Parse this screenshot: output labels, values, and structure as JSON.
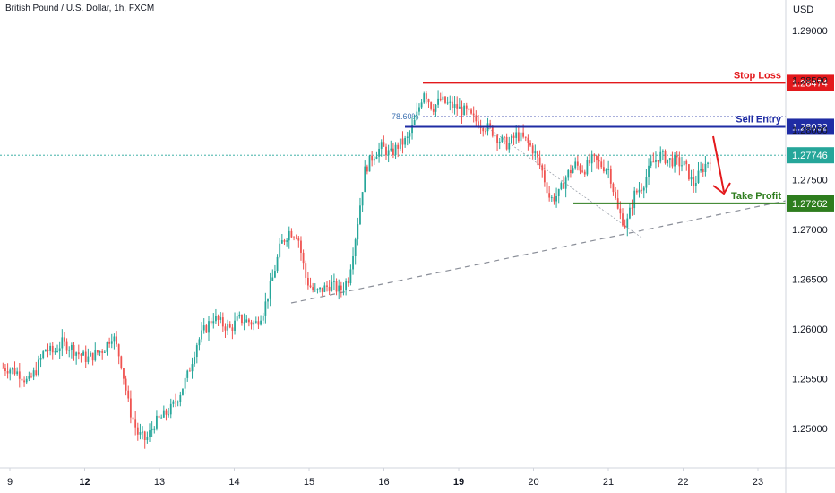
{
  "header": {
    "symbol_title": "British Pound / U.S. Dollar, 1h, FXCM",
    "currency": "USD"
  },
  "chart_data": {
    "type": "candlestick",
    "ylim": [
      1.246,
      1.296
    ],
    "x_tick_labels": [
      {
        "label": "9",
        "bold": false
      },
      {
        "label": "12",
        "bold": true
      },
      {
        "label": "13",
        "bold": false
      },
      {
        "label": "14",
        "bold": false
      },
      {
        "label": "15",
        "bold": false
      },
      {
        "label": "16",
        "bold": false
      },
      {
        "label": "19",
        "bold": true
      },
      {
        "label": "20",
        "bold": false
      },
      {
        "label": "21",
        "bold": false
      },
      {
        "label": "22",
        "bold": false
      },
      {
        "label": "23",
        "bold": false
      }
    ],
    "y_ticks": [
      "1.29000",
      "1.28500",
      "1.28000",
      "1.27500",
      "1.27000",
      "1.26500",
      "1.26000",
      "1.25500",
      "1.25000"
    ],
    "y_tick_values": [
      1.29,
      1.285,
      1.28,
      1.275,
      1.27,
      1.265,
      1.26,
      1.255,
      1.25
    ],
    "levels": [
      {
        "name": "Stop Loss",
        "value": 1.28474,
        "label": "1.28474",
        "color": "#e3191c"
      },
      {
        "name": "Sell Entry",
        "value": 1.28032,
        "label": "1.28032",
        "color": "#1f2ca4"
      },
      {
        "name": "Take Profit",
        "value": 1.27262,
        "label": "1.27262",
        "color": "#2e7d1e"
      }
    ],
    "last_price": {
      "value": 1.27746,
      "label": "1.27746",
      "color": "#26a69a"
    },
    "fib_label": "78.60%",
    "colors": {
      "up": "#26a69a",
      "down": "#ef5350"
    },
    "price_path": [
      1.2561,
      1.256,
      1.2555,
      1.2546,
      1.256,
      1.258,
      1.2576,
      1.2586,
      1.2582,
      1.2575,
      1.257,
      1.2575,
      1.258,
      1.2595,
      1.2568,
      1.252,
      1.2495,
      1.2488,
      1.2505,
      1.2512,
      1.252,
      1.2535,
      1.2555,
      1.2585,
      1.26,
      1.2612,
      1.2605,
      1.26,
      1.261,
      1.2608,
      1.2605,
      1.262,
      1.265,
      1.2685,
      1.2698,
      1.2695,
      1.265,
      1.2636,
      1.264,
      1.2645,
      1.2638,
      1.265,
      1.27,
      1.276,
      1.2775,
      1.2783,
      1.2775,
      1.2785,
      1.279,
      1.281,
      1.284,
      1.2822,
      1.283,
      1.2825,
      1.2822,
      1.2818,
      1.281,
      1.2805,
      1.28,
      1.279,
      1.2785,
      1.2795,
      1.279,
      1.278,
      1.276,
      1.273,
      1.2735,
      1.2755,
      1.2765,
      1.276,
      1.277,
      1.2765,
      1.276,
      1.272,
      1.2703,
      1.2735,
      1.2745,
      1.2765,
      1.2775,
      1.277,
      1.2768,
      1.2764,
      1.2745,
      1.276,
      1.2772
    ]
  }
}
